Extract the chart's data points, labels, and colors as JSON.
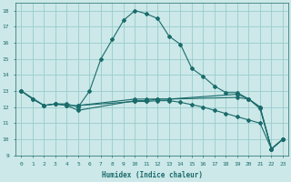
{
  "xlabel": "Humidex (Indice chaleur)",
  "background_color": "#cce8e8",
  "grid_color": "#99cccc",
  "line_color": "#1a6b6b",
  "xlim": [
    -0.5,
    23.5
  ],
  "ylim": [
    9,
    18.5
  ],
  "yticks": [
    9,
    10,
    11,
    12,
    13,
    14,
    15,
    16,
    17,
    18
  ],
  "xticks": [
    0,
    1,
    2,
    3,
    4,
    5,
    6,
    7,
    8,
    9,
    10,
    11,
    12,
    13,
    14,
    15,
    16,
    17,
    18,
    19,
    20,
    21,
    22,
    23
  ],
  "line1_x": [
    0,
    1,
    2,
    3,
    4,
    5,
    6,
    7,
    8,
    9,
    10,
    11,
    12,
    13,
    14,
    15,
    16,
    17,
    18,
    19,
    20,
    21,
    22,
    23
  ],
  "line1_y": [
    13.0,
    12.5,
    12.1,
    12.2,
    12.2,
    12.0,
    13.0,
    15.0,
    16.2,
    17.4,
    18.0,
    17.8,
    17.5,
    16.4,
    15.9,
    14.4,
    13.9,
    13.3,
    12.9,
    12.9,
    12.5,
    11.9,
    9.4,
    10.0
  ],
  "line2_x": [
    0,
    1,
    2,
    3,
    4,
    5,
    10,
    11,
    12,
    13,
    19,
    20,
    21,
    22,
    23
  ],
  "line2_y": [
    13.0,
    12.5,
    12.1,
    12.2,
    12.1,
    12.1,
    12.5,
    12.5,
    12.5,
    12.5,
    12.8,
    12.5,
    12.0,
    9.4,
    10.0
  ],
  "line3_x": [
    0,
    2,
    3,
    4,
    5,
    10,
    11,
    12,
    13,
    19,
    20,
    21,
    22,
    23
  ],
  "line3_y": [
    13.0,
    12.1,
    12.2,
    12.1,
    11.8,
    12.4,
    12.4,
    12.5,
    12.5,
    12.6,
    12.5,
    12.0,
    9.4,
    10.0
  ],
  "line4_x": [
    5,
    10,
    11,
    12,
    13,
    14,
    15,
    16,
    17,
    18,
    19,
    20,
    21,
    22,
    23
  ],
  "line4_y": [
    12.1,
    12.35,
    12.35,
    12.4,
    12.4,
    12.3,
    12.15,
    12.0,
    11.8,
    11.6,
    11.4,
    11.2,
    11.0,
    9.4,
    10.0
  ]
}
